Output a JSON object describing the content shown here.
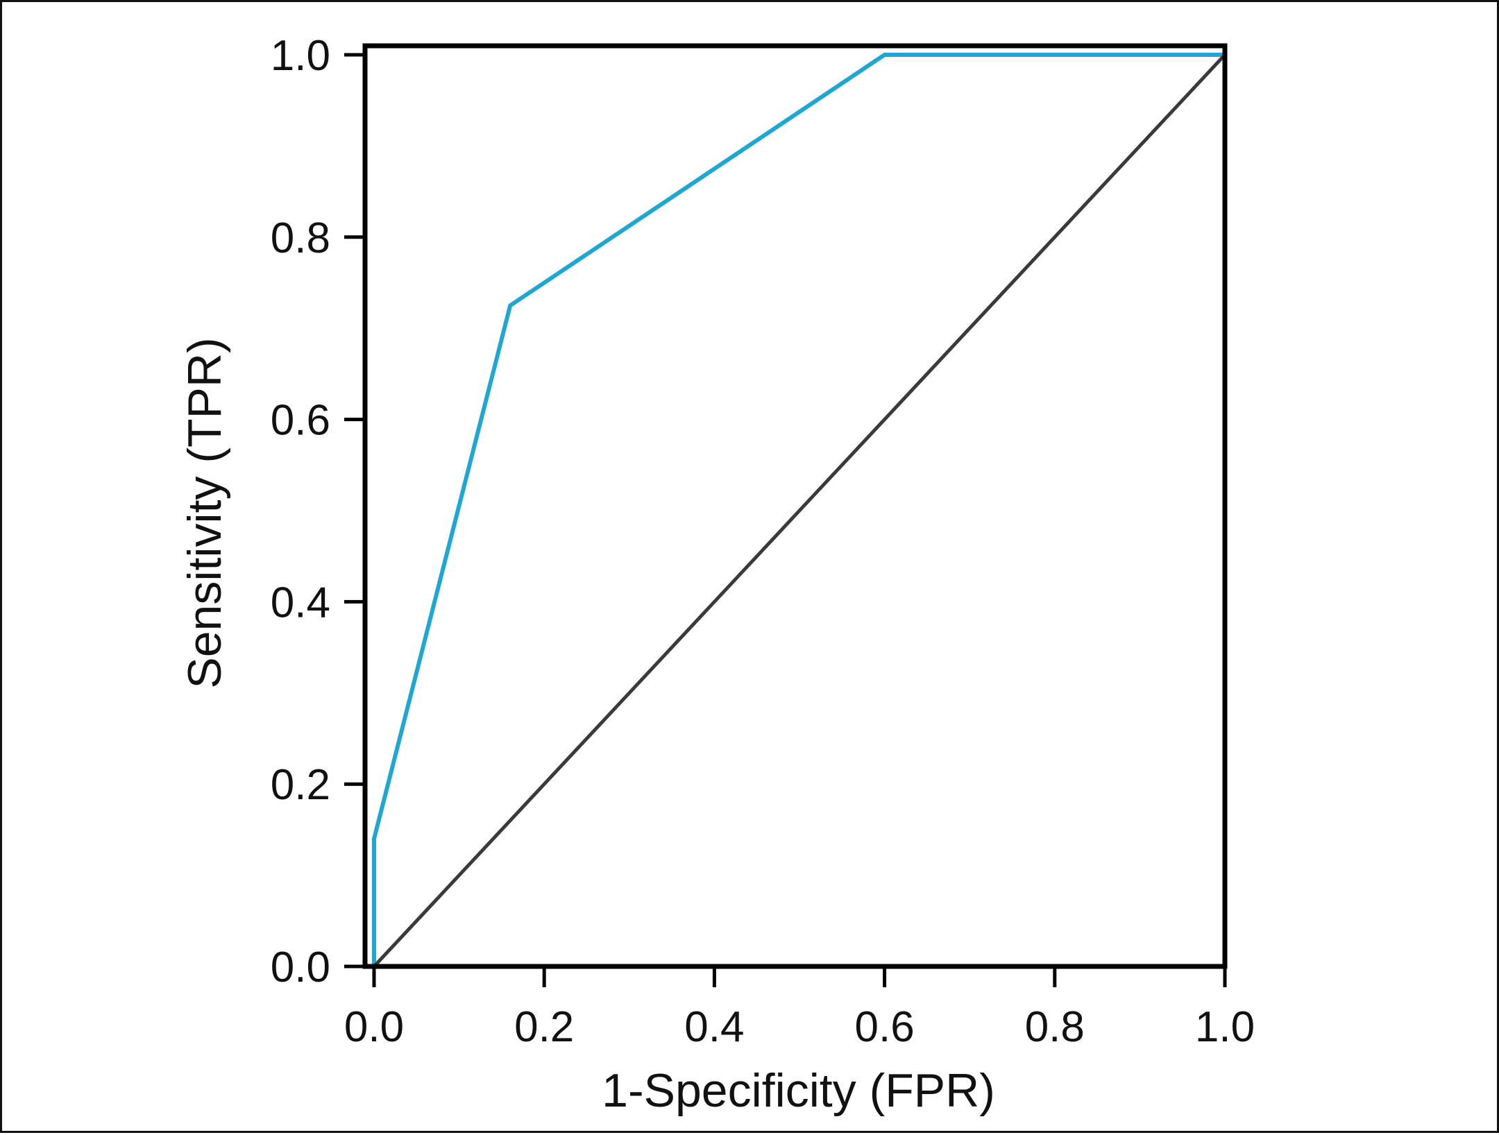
{
  "chart_data": {
    "type": "line",
    "xlabel": "1-Specificity (FPR)",
    "ylabel": "Sensitivity (TPR)",
    "xlim": [
      0.0,
      1.0
    ],
    "ylim": [
      0.0,
      1.0
    ],
    "xticks": [
      "0.0",
      "0.2",
      "0.4",
      "0.6",
      "0.8",
      "1.0"
    ],
    "yticks": [
      "0.0",
      "0.2",
      "0.4",
      "0.6",
      "0.8",
      "1.0"
    ],
    "grid": false,
    "legend": "none",
    "series": [
      {
        "color": "#1fa7d3",
        "x": [
          0.0,
          0.0,
          0.0,
          0.16,
          0.6,
          1.0
        ],
        "y": [
          0.0,
          0.0,
          0.14,
          0.725,
          1.0,
          1.0
        ]
      },
      {
        "color": "#3a3a3a",
        "x": [
          0.0,
          1.0
        ],
        "y": [
          0.0,
          1.0
        ]
      }
    ]
  }
}
